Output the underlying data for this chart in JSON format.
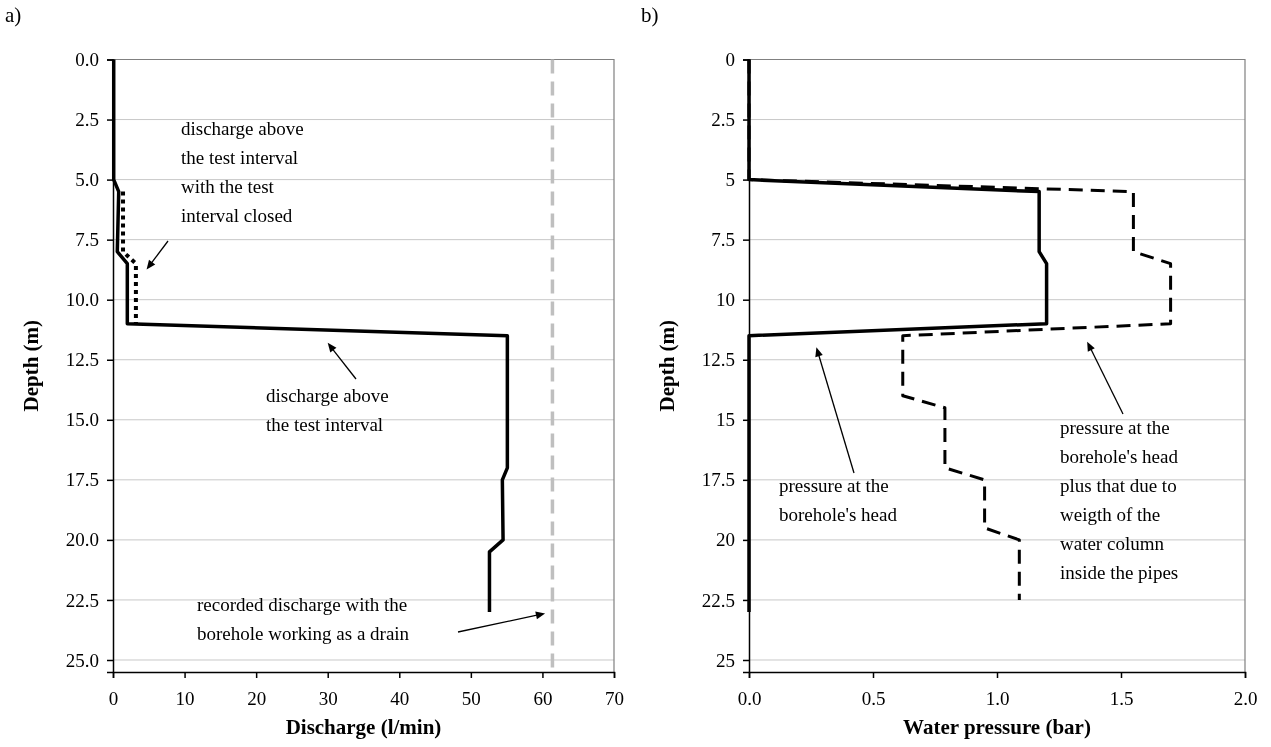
{
  "chart_data": [
    {
      "type": "line",
      "title": "a)",
      "xlabel": "Discharge (l/min)",
      "ylabel": "Depth (m)",
      "xlim": [
        0,
        70
      ],
      "xticks": [
        0,
        10,
        20,
        30,
        40,
        50,
        60,
        70
      ],
      "ylim": [
        25.5,
        0
      ],
      "yticks": [
        {
          "value": 0,
          "label": "0.0"
        },
        {
          "value": 2.5,
          "label": "2.5"
        },
        {
          "value": 5,
          "label": "5.0"
        },
        {
          "value": 7.5,
          "label": "7.5"
        },
        {
          "value": 10,
          "label": "10.0"
        },
        {
          "value": 12.5,
          "label": "12.5"
        },
        {
          "value": 15,
          "label": "15.0"
        },
        {
          "value": 17.5,
          "label": "17.5"
        },
        {
          "value": 20,
          "label": "20.0"
        },
        {
          "value": 22.5,
          "label": "22.5"
        },
        {
          "value": 25,
          "label": "25.0"
        }
      ],
      "grid": "y",
      "marker": "none",
      "series": [
        {
          "color": "#000000",
          "line_style": "solid",
          "x": [
            0.1,
            0.1,
            0.8,
            0.6,
            2.0,
            2.0,
            55.1,
            55.1,
            54.4,
            54.5,
            52.6,
            52.6
          ],
          "values": [
            0,
            5,
            5.5,
            8,
            8.5,
            11,
            11.5,
            17,
            17.5,
            20,
            20.5,
            23
          ]
        },
        {
          "color": "#000000",
          "line_style": "dotted",
          "x": [
            1.4,
            1.4,
            3.2,
            3.2
          ],
          "values": [
            5.5,
            8,
            8.5,
            11
          ]
        }
      ],
      "ref_lines": [
        {
          "axis": "x",
          "value": 61.4,
          "color": "#bfbfbf",
          "line_style": "dashed"
        }
      ],
      "annotations": [
        "discharge above\nthe test interval\nwith the test\ninterval closed",
        "discharge above\nthe test interval",
        "recorded discharge with the\nborehole working as a drain"
      ]
    },
    {
      "type": "line",
      "title": "b)",
      "xlabel": "Water pressure (bar)",
      "ylabel": "Depth (m)",
      "xlim": [
        0,
        2
      ],
      "xticks": [
        {
          "value": 0,
          "label": "0.0"
        },
        {
          "value": 0.5,
          "label": "0.5"
        },
        {
          "value": 1,
          "label": "1.0"
        },
        {
          "value": 1.5,
          "label": "1.5"
        },
        {
          "value": 2,
          "label": "2.0"
        }
      ],
      "ylim": [
        25.5,
        0
      ],
      "yticks": [
        0,
        2.5,
        5,
        7.5,
        10,
        12.5,
        15,
        17.5,
        20,
        22.5,
        25
      ],
      "grid": "y",
      "marker": "none",
      "series": [
        {
          "color": "#000000",
          "line_style": "solid",
          "x": [
            0,
            0,
            1.17,
            1.17,
            1.2,
            1.2,
            0,
            0
          ],
          "values": [
            0,
            5,
            5.5,
            8,
            8.5,
            11,
            11.5,
            23
          ]
        },
        {
          "color": "#000000",
          "line_style": "dashed",
          "x": [
            0,
            0,
            1.55,
            1.55,
            1.7,
            1.7,
            0.62,
            0.62,
            0.79,
            0.79,
            0.95,
            0.95,
            1.09,
            1.09
          ],
          "values": [
            0,
            5,
            5.5,
            8,
            8.5,
            11,
            11.5,
            14,
            14.5,
            17,
            17.5,
            19.5,
            20,
            22.5
          ]
        }
      ],
      "annotations": [
        "pressure at the\nborehole's head",
        "pressure at the\nborehole's head\nplus that due to\nweigth of the\nwater column\ninside the pipes"
      ]
    }
  ]
}
